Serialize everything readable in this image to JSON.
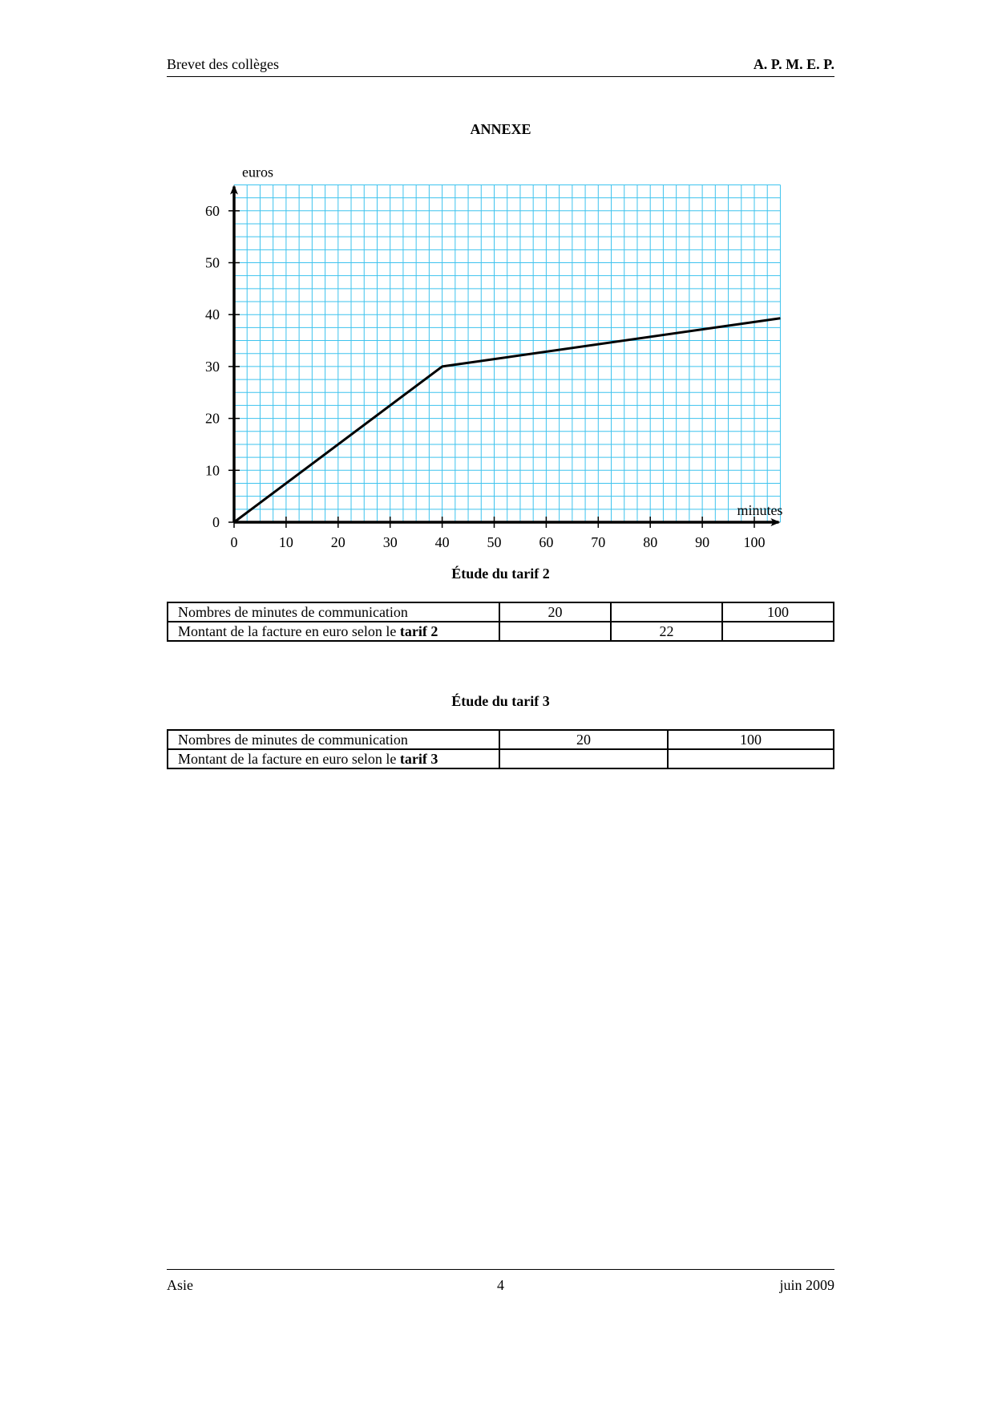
{
  "header": {
    "left": "Brevet des collèges",
    "right": "A. P. M. E. P."
  },
  "title": "ANNEXE",
  "chart_data": {
    "type": "line",
    "xlabel": "minutes",
    "ylabel": "euros",
    "xlim": [
      0,
      105
    ],
    "ylim": [
      0,
      65
    ],
    "xticks": [
      0,
      10,
      20,
      30,
      40,
      50,
      60,
      70,
      80,
      90,
      100
    ],
    "yticks": [
      0,
      10,
      20,
      30,
      40,
      50,
      60
    ],
    "grid": true,
    "grid_minor_step": 2.5,
    "grid_color": "#3ec3ee",
    "series": [
      {
        "name": "tarif 2",
        "x": [
          0,
          40,
          105
        ],
        "y": [
          0,
          30,
          39.3
        ]
      }
    ]
  },
  "table2": {
    "title": "Étude du tarif 2",
    "row1": {
      "label": "Nombres de minutes de communication",
      "cells": [
        "20",
        "",
        "100"
      ]
    },
    "row2": {
      "label": "Montant de la facture en euro selon le ",
      "label_bold": "tarif 2",
      "cells": [
        "",
        "22",
        ""
      ]
    }
  },
  "table3": {
    "title": "Étude du tarif 3",
    "row1": {
      "label": "Nombres de minutes de communication",
      "cells": [
        "20",
        "100"
      ]
    },
    "row2": {
      "label": "Montant de la facture en euro selon le ",
      "label_bold": "tarif 3",
      "cells": [
        "",
        ""
      ]
    }
  },
  "footer": {
    "left": "Asie",
    "center": "4",
    "right": "juin 2009"
  }
}
